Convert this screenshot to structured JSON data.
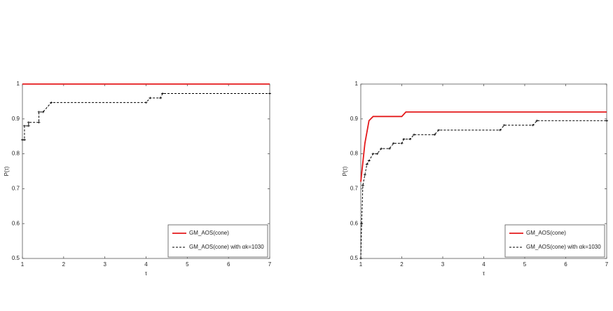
{
  "chart_data": [
    {
      "type": "line",
      "xlabel": "τ",
      "ylabel": "P(τ)",
      "xlim": [
        1,
        7
      ],
      "ylim": [
        0.5,
        1
      ],
      "xticks": [
        1,
        2,
        3,
        4,
        5,
        6,
        7
      ],
      "yticks": [
        0.5,
        0.6,
        0.7,
        0.8,
        0.9,
        1
      ],
      "legend": "lower right",
      "series": [
        {
          "name": "GM_AOS(cone)",
          "color": "#e41a1c",
          "style": "solid",
          "x": [
            1,
            7
          ],
          "values": [
            1,
            1
          ]
        },
        {
          "name": "GM_AOS(cone) with αk=1030",
          "color": "#000000",
          "style": "dashed",
          "x": [
            1,
            1.05,
            1.05,
            1.15,
            1.15,
            1.4,
            1.4,
            1.5,
            1.7,
            4.0,
            4.1,
            4.35,
            4.4,
            7
          ],
          "values": [
            0.84,
            0.84,
            0.88,
            0.88,
            0.89,
            0.89,
            0.92,
            0.92,
            0.947,
            0.947,
            0.96,
            0.96,
            0.973,
            0.973
          ]
        }
      ]
    },
    {
      "type": "line",
      "xlabel": "τ",
      "ylabel": "P(τ)",
      "xlim": [
        1,
        7
      ],
      "ylim": [
        0.5,
        1
      ],
      "xticks": [
        1,
        2,
        3,
        4,
        5,
        6,
        7
      ],
      "yticks": [
        0.5,
        0.6,
        0.7,
        0.8,
        0.9,
        1
      ],
      "legend": "lower right",
      "series": [
        {
          "name": "GM_AOS(cone)",
          "color": "#e41a1c",
          "style": "solid",
          "x": [
            1,
            1.1,
            1.2,
            1.3,
            2.0,
            2.1,
            7
          ],
          "values": [
            0.72,
            0.83,
            0.895,
            0.907,
            0.907,
            0.92,
            0.92
          ]
        },
        {
          "name": "GM_AOS(cone) with αk=1030",
          "color": "#000000",
          "style": "dashed",
          "x": [
            1,
            1.02,
            1.05,
            1.1,
            1.15,
            1.2,
            1.3,
            1.4,
            1.5,
            1.7,
            1.8,
            2.0,
            2.05,
            2.2,
            2.3,
            2.8,
            2.9,
            4.4,
            4.5,
            5.2,
            5.3,
            7
          ],
          "values": [
            0.5,
            0.6,
            0.71,
            0.74,
            0.77,
            0.78,
            0.8,
            0.8,
            0.815,
            0.815,
            0.83,
            0.83,
            0.842,
            0.842,
            0.855,
            0.855,
            0.868,
            0.868,
            0.882,
            0.882,
            0.895,
            0.895
          ]
        }
      ]
    }
  ]
}
